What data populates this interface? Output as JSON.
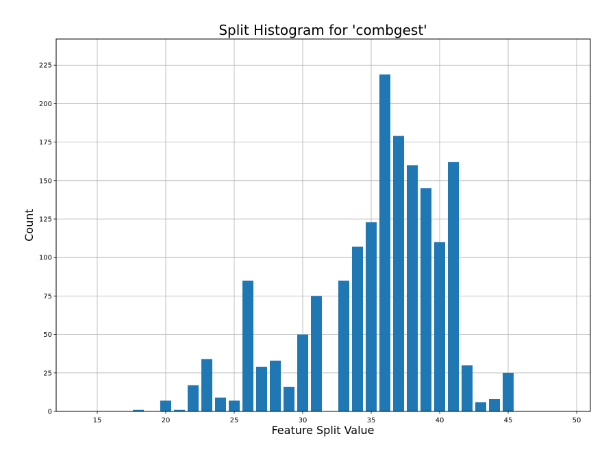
{
  "chart_data": {
    "type": "bar",
    "title": "Split Histogram for 'combgest'",
    "xlabel": "Feature Split Value",
    "ylabel": "Count",
    "xlim": [
      12,
      51
    ],
    "ylim": [
      0,
      242
    ],
    "xticks": [
      15,
      20,
      25,
      30,
      35,
      40,
      45,
      50
    ],
    "yticks": [
      0,
      25,
      50,
      75,
      100,
      125,
      150,
      175,
      200,
      225
    ],
    "grid": true,
    "bar_color": "#1f77b4",
    "x": [
      18,
      20,
      21,
      22,
      23,
      24,
      25,
      26,
      27,
      28,
      29,
      30,
      31,
      33,
      34,
      35,
      36,
      37,
      38,
      39,
      40,
      41,
      42,
      43,
      44,
      45
    ],
    "values": [
      1,
      7,
      1,
      17,
      34,
      9,
      7,
      85,
      29,
      33,
      16,
      50,
      75,
      85,
      107,
      123,
      219,
      179,
      160,
      145,
      110,
      162,
      30,
      6,
      8,
      25
    ]
  }
}
